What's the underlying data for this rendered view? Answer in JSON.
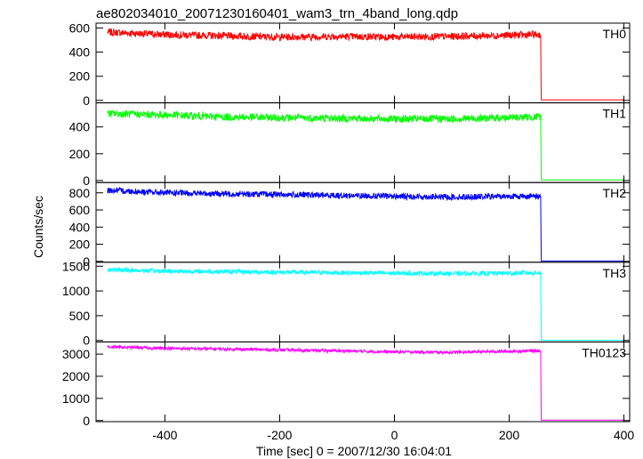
{
  "title": "ae802034010_20071230160401_wam3_trn_4band_long.qdp",
  "ylabel": "Counts/sec",
  "xlabel": "Time [sec] 0 = 2007/12/30 16:04:01",
  "chart_data": {
    "type": "line",
    "title": "ae802034010_20071230160401_wam3_trn_4band_long.qdp",
    "xlabel": "Time [sec] 0 = 2007/12/30 16:04:01",
    "ylabel": "Counts/sec",
    "xlim": [
      -520,
      410
    ],
    "xticks": [
      -400,
      -200,
      0,
      200,
      400
    ],
    "x_end_of_signal": 255,
    "panels": [
      {
        "name": "TH0",
        "color": "#ff0000",
        "ylim": [
          -20,
          640
        ],
        "yticks": [
          0,
          200,
          400,
          600
        ],
        "x": [
          -500,
          -400,
          -300,
          -200,
          -100,
          0,
          100,
          200,
          250,
          255,
          256,
          400
        ],
        "y": [
          565,
          545,
          535,
          525,
          530,
          525,
          530,
          540,
          545,
          545,
          5,
          5
        ],
        "noise": 30
      },
      {
        "name": "TH1",
        "color": "#00ff00",
        "ylim": [
          -15,
          580
        ],
        "yticks": [
          0,
          200,
          400
        ],
        "x": [
          -500,
          -400,
          -300,
          -200,
          -100,
          0,
          100,
          200,
          250,
          255,
          256,
          400
        ],
        "y": [
          500,
          490,
          475,
          470,
          465,
          460,
          460,
          470,
          475,
          480,
          5,
          5
        ],
        "noise": 28
      },
      {
        "name": "TH2",
        "color": "#0000ff",
        "ylim": [
          -10,
          920
        ],
        "yticks": [
          0,
          200,
          400,
          600,
          800
        ],
        "x": [
          -500,
          -400,
          -300,
          -200,
          -100,
          0,
          100,
          200,
          250,
          255,
          256,
          400
        ],
        "y": [
          830,
          800,
          790,
          780,
          770,
          760,
          750,
          760,
          760,
          760,
          5,
          5
        ],
        "noise": 35
      },
      {
        "name": "TH3",
        "color": "#00ffff",
        "ylim": [
          -30,
          1580
        ],
        "yticks": [
          0,
          500,
          1000,
          1500
        ],
        "x": [
          -500,
          -400,
          -300,
          -200,
          -100,
          0,
          100,
          200,
          250,
          255,
          256,
          400
        ],
        "y": [
          1430,
          1400,
          1390,
          1380,
          1370,
          1360,
          1350,
          1360,
          1370,
          1370,
          5,
          5
        ],
        "noise": 45
      },
      {
        "name": "TH0123",
        "color": "#ff00ff",
        "ylim": [
          -50,
          3550
        ],
        "yticks": [
          0,
          1000,
          2000,
          3000
        ],
        "x": [
          -500,
          -400,
          -300,
          -200,
          -100,
          0,
          100,
          200,
          250,
          255,
          256,
          400
        ],
        "y": [
          3330,
          3260,
          3230,
          3190,
          3150,
          3100,
          3080,
          3130,
          3150,
          3150,
          20,
          20
        ],
        "noise": 70
      }
    ]
  }
}
